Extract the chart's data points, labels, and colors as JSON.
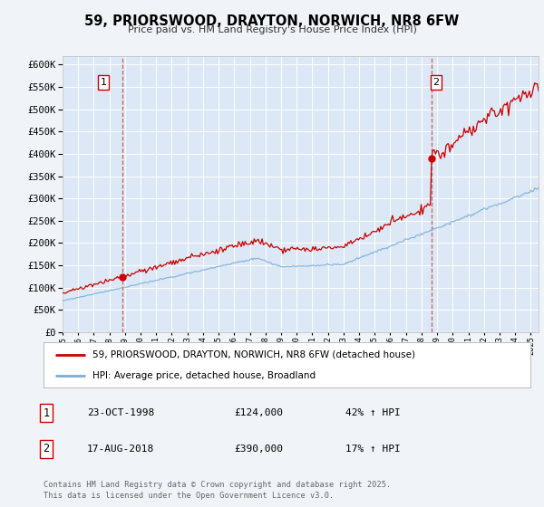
{
  "title": "59, PRIORSWOOD, DRAYTON, NORWICH, NR8 6FW",
  "subtitle": "Price paid vs. HM Land Registry's House Price Index (HPI)",
  "background_color": "#f0f4f8",
  "plot_bg_color": "#dce8f5",
  "grid_color": "#ffffff",
  "red_line_color": "#cc0000",
  "blue_line_color": "#7aaddb",
  "sale1_x": 1998.81,
  "sale1_y": 124000,
  "sale1_label": "1",
  "sale2_x": 2018.63,
  "sale2_y": 390000,
  "sale2_label": "2",
  "xmin": 1995,
  "xmax": 2025.5,
  "ymin": 0,
  "ymax": 620000,
  "yticks": [
    0,
    50000,
    100000,
    150000,
    200000,
    250000,
    300000,
    350000,
    400000,
    450000,
    500000,
    550000,
    600000
  ],
  "legend_red_label": "59, PRIORSWOOD, DRAYTON, NORWICH, NR8 6FW (detached house)",
  "legend_blue_label": "HPI: Average price, detached house, Broadland",
  "table_rows": [
    {
      "num": "1",
      "date": "23-OCT-1998",
      "price": "£124,000",
      "hpi": "42% ↑ HPI"
    },
    {
      "num": "2",
      "date": "17-AUG-2018",
      "price": "£390,000",
      "hpi": "17% ↑ HPI"
    }
  ],
  "footer": "Contains HM Land Registry data © Crown copyright and database right 2025.\nThis data is licensed under the Open Government Licence v3.0."
}
